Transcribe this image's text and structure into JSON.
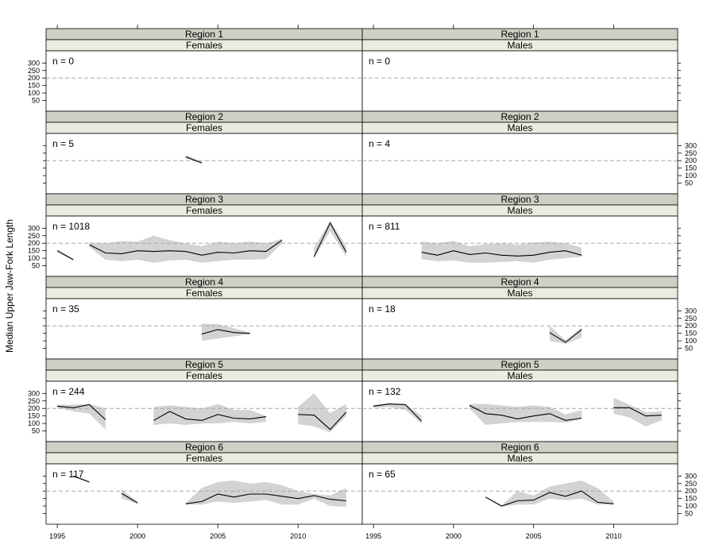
{
  "chart_data": {
    "type": "line",
    "ylabel": "Median Upper Jaw-Fork Length",
    "xlim": [
      1994.3,
      2014.0
    ],
    "ylim": [
      0,
      360
    ],
    "x_ticks": [
      1995,
      2000,
      2005,
      2010
    ],
    "y_ticks": [
      50,
      100,
      150,
      200,
      250,
      300
    ],
    "reference_line": 200,
    "colors": {
      "strip_top": "#cfcfc5",
      "strip_bottom": "#ecebdf",
      "band": "#d3d3d3",
      "line": "#000000",
      "ref": "#a8a8a8"
    },
    "panels": [
      {
        "region": "Region 1",
        "sex": "Females",
        "n_label": "n = 0",
        "segments": []
      },
      {
        "region": "Region 1",
        "sex": "Males",
        "n_label": "n = 0",
        "segments": []
      },
      {
        "region": "Region 2",
        "sex": "Females",
        "n_label": "n = 5",
        "segments": [
          {
            "x": [
              2003,
              2004
            ],
            "y": [
              225,
              185
            ],
            "lo": [
              215,
              180
            ],
            "hi": [
              240,
              195
            ]
          }
        ]
      },
      {
        "region": "Region 2",
        "sex": "Males",
        "n_label": "n = 4",
        "segments": []
      },
      {
        "region": "Region 3",
        "sex": "Females",
        "n_label": "n = 1018",
        "segments": [
          {
            "x": [
              1995,
              1996
            ],
            "y": [
              150,
              90
            ],
            "lo": [
              140,
              85
            ],
            "hi": [
              160,
              95
            ]
          },
          {
            "x": [
              1997,
              1998,
              1999,
              2000,
              2001,
              2002,
              2003,
              2004,
              2005,
              2006,
              2007,
              2008,
              2009
            ],
            "y": [
              190,
              135,
              130,
              150,
              145,
              150,
              145,
              120,
              140,
              135,
              150,
              145,
              220
            ],
            "lo": [
              175,
              90,
              80,
              90,
              70,
              85,
              90,
              70,
              80,
              90,
              90,
              95,
              200
            ],
            "hi": [
              205,
              200,
              215,
              210,
              250,
              220,
              200,
              180,
              210,
              200,
              210,
              200,
              230
            ]
          },
          {
            "x": [
              2011,
              2012,
              2013
            ],
            "y": [
              110,
              335,
              140
            ],
            "lo": [
              100,
              280,
              110
            ],
            "hi": [
              170,
              350,
              180
            ]
          }
        ]
      },
      {
        "region": "Region 3",
        "sex": "Males",
        "n_label": "n = 811",
        "segments": [
          {
            "x": [
              1998,
              1999,
              2000,
              2001,
              2002,
              2003,
              2004,
              2005,
              2006,
              2007,
              2008
            ],
            "y": [
              140,
              120,
              150,
              125,
              135,
              120,
              115,
              120,
              140,
              150,
              120
            ],
            "lo": [
              95,
              80,
              85,
              70,
              70,
              75,
              80,
              70,
              90,
              100,
              110
            ],
            "hi": [
              210,
              200,
              215,
              180,
              195,
              200,
              190,
              205,
              210,
              200,
              170
            ]
          }
        ]
      },
      {
        "region": "Region 4",
        "sex": "Females",
        "n_label": "n = 35",
        "segments": [
          {
            "x": [
              2004,
              2005,
              2006,
              2007
            ],
            "y": [
              145,
              175,
              155,
              150
            ],
            "lo": [
              100,
              115,
              130,
              145
            ],
            "hi": [
              215,
              210,
              185,
              155
            ]
          }
        ]
      },
      {
        "region": "Region 4",
        "sex": "Males",
        "n_label": "n = 18",
        "segments": [
          {
            "x": [
              2006,
              2007,
              2008
            ],
            "y": [
              155,
              90,
              175
            ],
            "lo": [
              100,
              80,
              120
            ],
            "hi": [
              200,
              105,
              190
            ]
          }
        ]
      },
      {
        "region": "Region 5",
        "sex": "Females",
        "n_label": "n = 244",
        "segments": [
          {
            "x": [
              1995,
              1996,
              1997,
              1998
            ],
            "y": [
              215,
              205,
              225,
              125
            ],
            "lo": [
              205,
              180,
              165,
              60
            ],
            "hi": [
              225,
              225,
              230,
              200
            ]
          },
          {
            "x": [
              2001,
              2002,
              2003,
              2004,
              2005,
              2006,
              2007,
              2008
            ],
            "y": [
              120,
              180,
              130,
              120,
              160,
              135,
              130,
              145
            ],
            "lo": [
              90,
              100,
              90,
              100,
              100,
              110,
              100,
              110
            ],
            "hi": [
              210,
              220,
              210,
              200,
              230,
              190,
              190,
              150
            ]
          },
          {
            "x": [
              2010,
              2011,
              2012,
              2013
            ],
            "y": [
              160,
              155,
              60,
              175
            ],
            "lo": [
              95,
              80,
              40,
              150
            ],
            "hi": [
              210,
              300,
              170,
              230
            ]
          }
        ]
      },
      {
        "region": "Region 5",
        "sex": "Males",
        "n_label": "n = 132",
        "segments": [
          {
            "x": [
              1995,
              1996,
              1997,
              1998
            ],
            "y": [
              215,
              230,
              225,
              115
            ],
            "lo": [
              205,
              210,
              190,
              100
            ],
            "hi": [
              225,
              235,
              230,
              150
            ]
          },
          {
            "x": [
              2001,
              2002,
              2003,
              2004,
              2005,
              2006,
              2007,
              2008
            ],
            "y": [
              220,
              165,
              155,
              130,
              150,
              165,
              120,
              135
            ],
            "lo": [
              200,
              90,
              100,
              110,
              110,
              110,
              105,
              130
            ],
            "hi": [
              230,
              230,
              220,
              210,
              220,
              210,
              160,
              190
            ]
          },
          {
            "x": [
              2010,
              2011,
              2012,
              2013
            ],
            "y": [
              205,
              205,
              150,
              155
            ],
            "lo": [
              165,
              140,
              80,
              120
            ],
            "hi": [
              270,
              225,
              175,
              180
            ]
          }
        ]
      },
      {
        "region": "Region 6",
        "sex": "Females",
        "n_label": "n = 117",
        "segments": [
          {
            "x": [
              1996,
              1997
            ],
            "y": [
              300,
              260
            ],
            "lo": [
              295,
              255
            ],
            "hi": [
              305,
              265
            ]
          },
          {
            "x": [
              1999,
              2000
            ],
            "y": [
              185,
              120
            ],
            "lo": [
              150,
              115
            ],
            "hi": [
              210,
              130
            ]
          },
          {
            "x": [
              2003,
              2004,
              2005,
              2006,
              2007,
              2008,
              2009,
              2010,
              2011,
              2012,
              2013
            ],
            "y": [
              115,
              130,
              180,
              160,
              180,
              180,
              165,
              150,
              170,
              145,
              135
            ],
            "lo": [
              110,
              110,
              130,
              120,
              130,
              140,
              110,
              110,
              150,
              100,
              95
            ],
            "hi": [
              120,
              220,
              260,
              270,
              250,
              260,
              240,
              200,
              180,
              170,
              220
            ]
          }
        ]
      },
      {
        "region": "Region 6",
        "sex": "Males",
        "n_label": "n = 65",
        "segments": [
          {
            "x": [
              2002,
              2003
            ],
            "y": [
              160,
              100
            ],
            "lo": [
              155,
              95
            ],
            "hi": [
              165,
              105
            ]
          },
          {
            "x": [
              2003,
              2004,
              2005,
              2006,
              2007,
              2008,
              2009,
              2010
            ],
            "y": [
              100,
              135,
              140,
              190,
              165,
              200,
              125,
              115
            ],
            "lo": [
              95,
              110,
              110,
              150,
              140,
              150,
              110,
              110
            ],
            "hi": [
              105,
              200,
              170,
              230,
              250,
              270,
              220,
              130
            ]
          }
        ]
      }
    ]
  }
}
